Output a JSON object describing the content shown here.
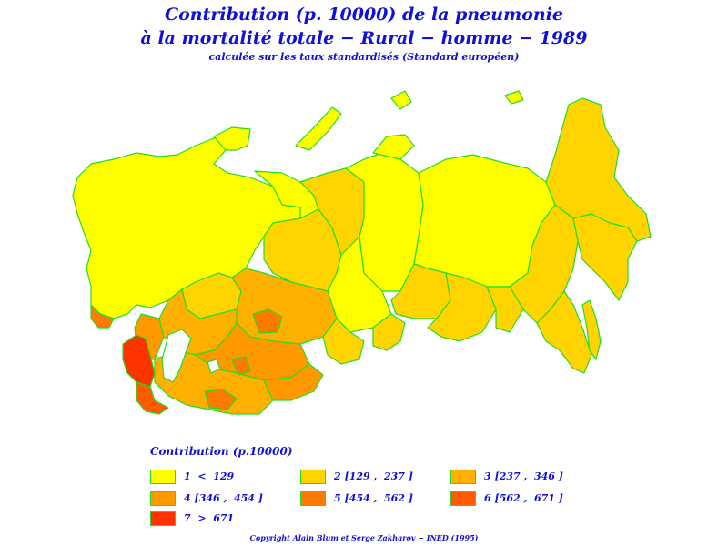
{
  "header": {
    "title_line1": "Contribution (p. 10000) de la pneumonie",
    "title_line2": "à la mortalité totale − Rural − homme − 1989",
    "subtitle": "calculée sur les taux standardisés (Standard européen)"
  },
  "legend": {
    "title": "Contribution (p.10000)",
    "items": [
      {
        "label": "1  <  129",
        "color": "#ffff00"
      },
      {
        "label": "2 [129 ,  237 ]",
        "color": "#ffd400"
      },
      {
        "label": "3 [237 ,  346 ]",
        "color": "#ffb000"
      },
      {
        "label": "4 [346 ,  454 ]",
        "color": "#ff9900"
      },
      {
        "label": "5 [454 ,  562 ]",
        "color": "#ff7a00"
      },
      {
        "label": "6 [562 ,  671 ]",
        "color": "#ff5a00"
      },
      {
        "label": "7  >  671",
        "color": "#ff3300"
      }
    ]
  },
  "map": {
    "border_color": "#22dd22"
  },
  "footer": {
    "copyright": "Copyright Alain Blum et Serge Zakharov − INED (1995)"
  }
}
